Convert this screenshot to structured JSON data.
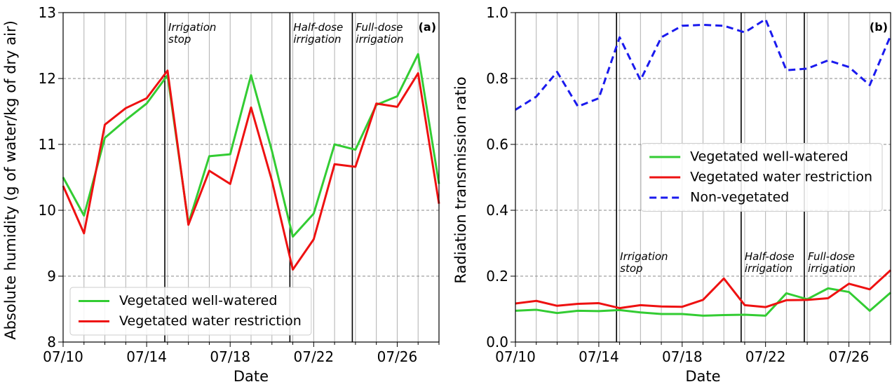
{
  "chart_data": [
    {
      "type": "line",
      "panel_label": "(a)",
      "x_label": "Date",
      "y_label": "Absolute humidity (g of water/kg of dry air)",
      "categories": [
        "07/10",
        null,
        null,
        null,
        "07/14",
        null,
        null,
        null,
        "07/18",
        null,
        null,
        null,
        "07/22",
        null,
        null,
        null,
        "07/26",
        null,
        null
      ],
      "series": [
        {
          "name": "Vegetated well-watered",
          "color": "#33cc33",
          "dash": false,
          "values": [
            10.5,
            9.92,
            11.1,
            11.37,
            11.62,
            12.05,
            9.8,
            10.82,
            10.85,
            12.05,
            10.9,
            9.6,
            9.95,
            11.0,
            10.92,
            11.6,
            11.73,
            12.37,
            10.4
          ]
        },
        {
          "name": "Vegetated water restriction",
          "color": "#ee1111",
          "dash": false,
          "values": [
            10.37,
            9.65,
            11.3,
            11.55,
            11.7,
            12.12,
            9.78,
            10.6,
            10.4,
            11.56,
            10.45,
            9.1,
            9.56,
            10.7,
            10.66,
            11.62,
            11.57,
            12.08,
            10.1
          ]
        }
      ],
      "ylim": [
        8,
        13
      ],
      "yticks": [
        8,
        9,
        10,
        11,
        12,
        13
      ],
      "grid": true,
      "legend": "lower left",
      "annotations": [
        {
          "lines": [
            "Irrigation",
            "stop"
          ],
          "x": 4.87
        },
        {
          "lines": [
            "Half-dose",
            "irrigation"
          ],
          "x": 10.86
        },
        {
          "lines": [
            "Full-dose",
            "irrigation"
          ],
          "x": 13.85
        }
      ]
    },
    {
      "type": "line",
      "panel_label": "(b)",
      "x_label": "Date",
      "y_label": "Radiation transmission ratio",
      "categories": [
        "07/10",
        null,
        null,
        null,
        "07/14",
        null,
        null,
        null,
        "07/18",
        null,
        null,
        null,
        "07/22",
        null,
        null,
        null,
        "07/26",
        null,
        null
      ],
      "series": [
        {
          "name": "Vegetated well-watered",
          "color": "#33cc33",
          "dash": false,
          "values": [
            0.095,
            0.098,
            0.088,
            0.095,
            0.094,
            0.097,
            0.09,
            0.085,
            0.085,
            0.08,
            0.082,
            0.083,
            0.08,
            0.148,
            0.13,
            0.163,
            0.152,
            0.095,
            0.15
          ]
        },
        {
          "name": "Vegetated water restriction",
          "color": "#ee1111",
          "dash": false,
          "values": [
            0.117,
            0.125,
            0.11,
            0.116,
            0.118,
            0.103,
            0.112,
            0.108,
            0.107,
            0.128,
            0.193,
            0.112,
            0.106,
            0.127,
            0.128,
            0.133,
            0.177,
            0.16,
            0.218
          ]
        },
        {
          "name": "Non-vegetated",
          "color": "#1a1aee",
          "dash": true,
          "values": [
            0.705,
            0.745,
            0.82,
            0.715,
            0.74,
            0.925,
            0.795,
            0.925,
            0.96,
            0.963,
            0.96,
            0.94,
            0.98,
            0.825,
            0.83,
            0.855,
            0.835,
            0.78,
            0.93
          ]
        }
      ],
      "ylim": [
        0,
        1
      ],
      "yticks": [
        {
          "value": 0,
          "label": "0.0"
        },
        0.2,
        0.4,
        0.6,
        0.8,
        {
          "value": 1,
          "label": "1.0"
        }
      ],
      "grid": true,
      "legend": "center right",
      "annotations": [
        {
          "lines": [
            "Irrigation",
            "stop"
          ],
          "x": 4.85
        },
        {
          "lines": [
            "Half-dose",
            "irrigation"
          ],
          "x": 10.83
        },
        {
          "lines": [
            "Full-dose",
            "irrigation"
          ],
          "x": 13.86
        }
      ]
    }
  ]
}
